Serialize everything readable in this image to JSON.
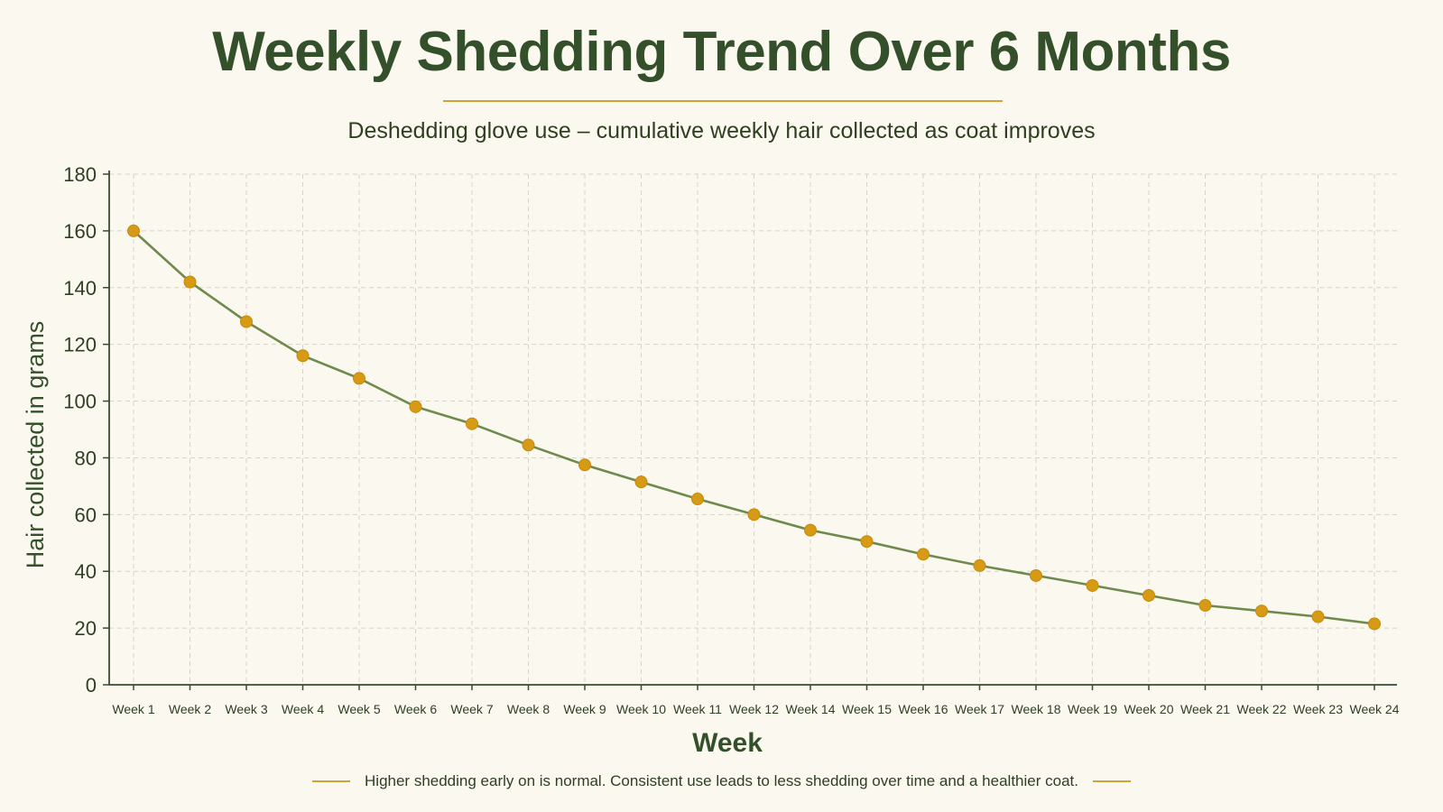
{
  "chart_data": {
    "type": "line",
    "title": "Weekly Shedding Trend Over 6 Months",
    "subtitle": "Deshedding glove use – cumulative weekly hair collected as coat improves",
    "xlabel": "Week",
    "ylabel": "Hair collected in grams",
    "ylim": [
      0,
      180
    ],
    "yticks": [
      0,
      20,
      40,
      60,
      80,
      100,
      120,
      140,
      160,
      180
    ],
    "grid": true,
    "categories": [
      "Week 1",
      "Week 2",
      "Week 3",
      "Week 4",
      "Week 5",
      "Week 6",
      "Week 7",
      "Week 8",
      "Week 9",
      "Week 10",
      "Week 11",
      "Week 12",
      "Week 14",
      "Week 15",
      "Week 16",
      "Week 17",
      "Week 18",
      "Week 19",
      "Week 20",
      "Week 21",
      "Week 22",
      "Week 23",
      "Week 24"
    ],
    "series": [
      {
        "values": [
          160,
          142,
          128,
          116,
          108,
          98,
          92,
          84.5,
          77.5,
          71.5,
          65.5,
          60,
          54.5,
          50.5,
          46,
          42,
          38.5,
          35,
          31.5,
          28,
          26,
          24,
          21.5
        ]
      }
    ],
    "colors": {
      "line": "#6f8a4c",
      "marker": "#d69a14",
      "title": "#34502a",
      "accent": "#d2a23a"
    }
  },
  "footnote": "Higher shedding early on is normal. Consistent use leads to less shedding over time and a healthier coat."
}
